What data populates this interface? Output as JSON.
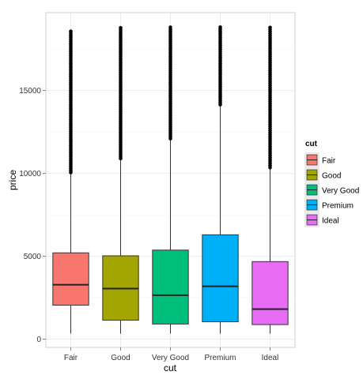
{
  "chart_data": {
    "type": "boxplot",
    "title": "",
    "xlabel": "cut",
    "ylabel": "price",
    "ylim": [
      -500,
      19700
    ],
    "yticks": [
      0,
      5000,
      10000,
      15000
    ],
    "ytick_labels": [
      "0",
      "5000",
      "10000",
      "15000"
    ],
    "grid": true,
    "legend": {
      "title": "cut",
      "placement": "right"
    },
    "categories": [
      "Fair",
      "Good",
      "Very Good",
      "Premium",
      "Ideal"
    ],
    "colors": [
      "#F8766D",
      "#A3A500",
      "#00BF7D",
      "#00B0F6",
      "#E76BF3"
    ],
    "boxes": [
      {
        "name": "Fair",
        "min": 337,
        "q1": 2050,
        "median": 3282,
        "q3": 5206,
        "whisker_high": 9950,
        "outlier_low": 10050,
        "outlier_high": 18574
      },
      {
        "name": "Good",
        "min": 327,
        "q1": 1145,
        "median": 3050,
        "q3": 5028,
        "whisker_high": 10850,
        "outlier_low": 10900,
        "outlier_high": 18788
      },
      {
        "name": "Very Good",
        "min": 336,
        "q1": 912,
        "median": 2648,
        "q3": 5373,
        "whisker_high": 12050,
        "outlier_low": 12100,
        "outlier_high": 18818
      },
      {
        "name": "Premium",
        "min": 326,
        "q1": 1046,
        "median": 3185,
        "q3": 6296,
        "whisker_high": 14100,
        "outlier_low": 14150,
        "outlier_high": 18823
      },
      {
        "name": "Ideal",
        "min": 326,
        "q1": 878,
        "median": 1810,
        "q3": 4678,
        "whisker_high": 10300,
        "outlier_low": 10350,
        "outlier_high": 18806
      }
    ]
  }
}
